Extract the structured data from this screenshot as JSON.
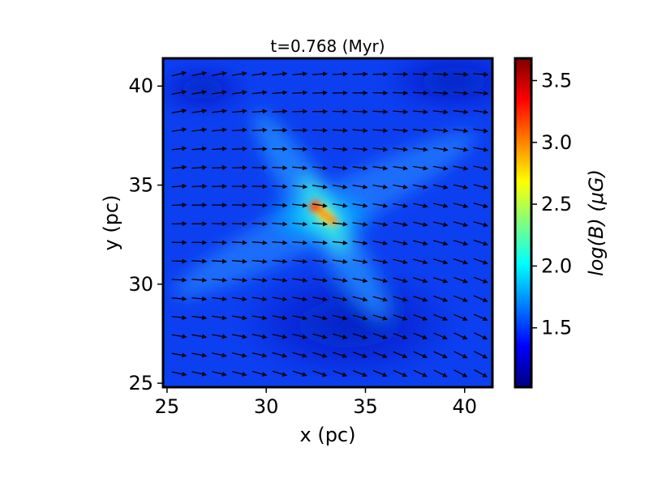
{
  "chart_data": {
    "type": "heatmap",
    "title": "t=0.768 (Myr)",
    "xlabel": "x (pc)",
    "ylabel": "y (pc)",
    "xlim": [
      24.8,
      41.4
    ],
    "ylim": [
      24.8,
      41.4
    ],
    "x_ticks": [
      25,
      30,
      35,
      40
    ],
    "y_ticks": [
      25,
      30,
      35,
      40
    ],
    "colorbar": {
      "label": "log(B) (μG)",
      "range": [
        1.02,
        3.68
      ],
      "ticks": [
        1.5,
        2.0,
        2.5,
        3.0,
        3.5
      ],
      "colormap": "jet",
      "colors": [
        "#00007f",
        "#0000ff",
        "#007fff",
        "#00ffff",
        "#7fff7f",
        "#ffff00",
        "#ff7f00",
        "#ff0000",
        "#7f0000"
      ]
    },
    "background_level": 1.45,
    "features": [
      {
        "kind": "core",
        "x": 32.6,
        "y": 33.9,
        "value": 3.5
      },
      {
        "kind": "core",
        "x": 33.3,
        "y": 33.4,
        "value": 3.4
      },
      {
        "kind": "filament",
        "from": [
          30.5,
          37.5
        ],
        "to": [
          36.0,
          28.0
        ],
        "value": 2.1
      },
      {
        "kind": "filament",
        "from": [
          26.0,
          30.0
        ],
        "to": [
          40.0,
          38.0
        ],
        "value": 1.8
      }
    ],
    "vector_field": {
      "quantity": "B direction",
      "rows": 17,
      "cols": 16,
      "color": "#000000"
    }
  }
}
